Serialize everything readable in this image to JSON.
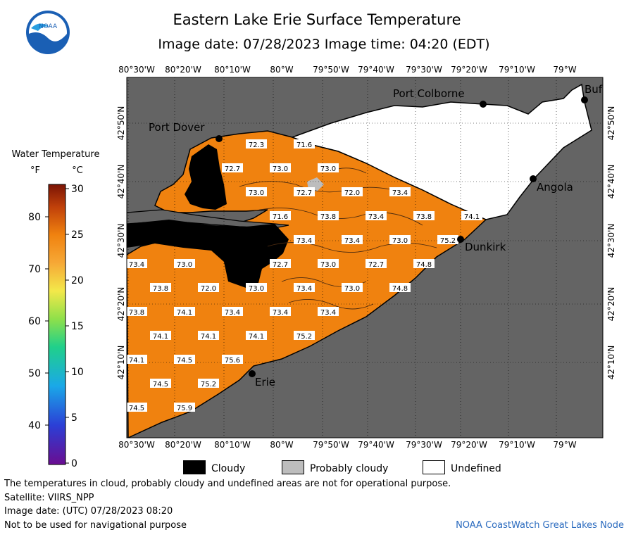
{
  "header": {
    "title": "Eastern Lake Erie Surface Temperature",
    "subtitle": "Image date: 07/28/2023     Image time: 04:20 (EDT)",
    "logo_text": "NOAA"
  },
  "colorbar": {
    "title": "Water Temperature",
    "unit_f": "°F",
    "unit_c": "°C",
    "f_ticks": [
      "80",
      "70",
      "60",
      "50",
      "40"
    ],
    "c_ticks": [
      "30",
      "25",
      "20",
      "15",
      "10",
      "5",
      "0"
    ]
  },
  "axes": {
    "lon_labels": [
      "80°30'W",
      "80°20'W",
      "80°10'W",
      "80°W",
      "79°50'W",
      "79°40'W",
      "79°30'W",
      "79°20'W",
      "79°10'W",
      "79°W"
    ],
    "lat_labels": [
      "42°50'N",
      "42°40'N",
      "42°30'N",
      "42°20'N",
      "42°10'N"
    ]
  },
  "places": [
    {
      "name": "Port Colborne",
      "id": "port-colborne"
    },
    {
      "name": "Port Dover",
      "id": "port-dover"
    },
    {
      "name": "Buf",
      "id": "buffalo"
    },
    {
      "name": "Angola",
      "id": "angola"
    },
    {
      "name": "Dunkirk",
      "id": "dunkirk"
    },
    {
      "name": "Erie",
      "id": "erie"
    }
  ],
  "temperature_labels": [
    "72.3",
    "71.6",
    "72.7",
    "73.0",
    "73.0",
    "73.0",
    "72.7",
    "72.0",
    "73.4",
    "71.6",
    "73.8",
    "73.4",
    "73.8",
    "74.1",
    "73.4",
    "73.4",
    "73.0",
    "75.2",
    "73.4",
    "73.0",
    "72.7",
    "73.0",
    "72.7",
    "74.8",
    "73.8",
    "72.0",
    "73.0",
    "73.4",
    "73.0",
    "74.8",
    "73.8",
    "74.1",
    "73.4",
    "73.4",
    "73.4",
    "74.1",
    "74.1",
    "74.1",
    "75.2",
    "74.1",
    "74.5",
    "75.6",
    "74.5",
    "75.2",
    "74.5",
    "75.9"
  ],
  "legend": {
    "cloudy": "Cloudy",
    "probably_cloudy": "Probably cloudy",
    "undefined": "Undefined"
  },
  "footer": {
    "note": "The temperatures in cloud, probably cloudy and undefined areas are not for operational purpose.",
    "satellite": "Satellite: VIIRS_NPP",
    "utc_date": "Image date: (UTC) 07/28/2023  08:20",
    "navigation": "Not to be used for navigational purpose",
    "credit": "NOAA CoastWatch Great Lakes Node"
  },
  "colors": {
    "land": "#646464",
    "water_warm": "#f0820f",
    "cloud": "#000000",
    "probably_cloudy": "#bdbdbd",
    "undefined": "#ffffff",
    "credit": "#2b6bbf"
  }
}
